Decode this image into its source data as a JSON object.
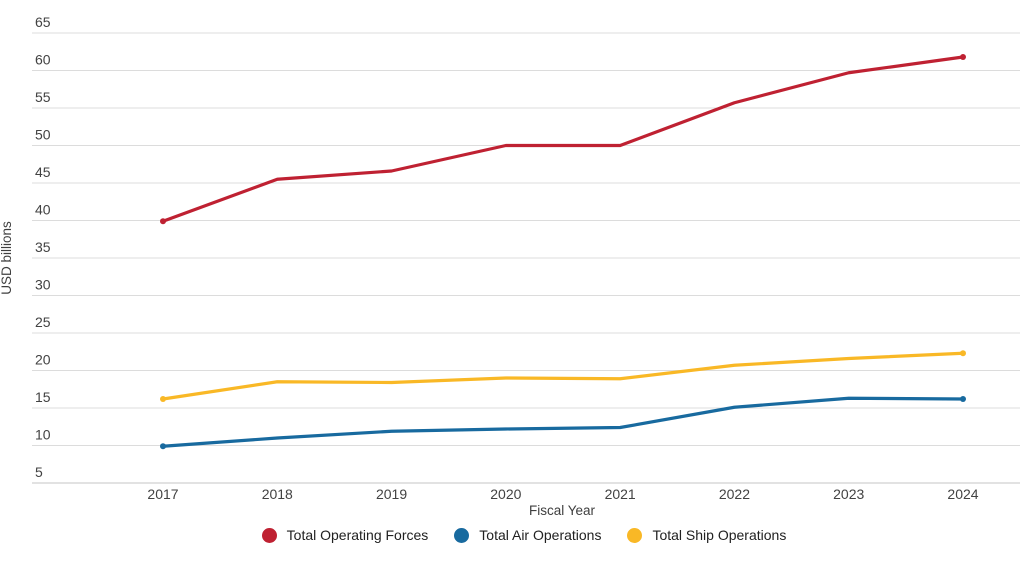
{
  "chart_data": {
    "type": "line",
    "xlabel": "Fiscal Year",
    "ylabel": "USD billions",
    "x": [
      2017,
      2018,
      2019,
      2020,
      2021,
      2022,
      2023,
      2024
    ],
    "series": [
      {
        "name": "Total Operating Forces",
        "color": "#bf2132",
        "values": [
          39.9,
          45.5,
          46.6,
          50.0,
          50.0,
          55.7,
          59.7,
          61.8
        ]
      },
      {
        "name": "Total Air Operations",
        "color": "#186a9f",
        "values": [
          9.9,
          11.0,
          11.9,
          12.2,
          12.4,
          15.1,
          16.3,
          16.2
        ]
      },
      {
        "name": "Total Ship Operations",
        "color": "#f9b826",
        "values": [
          16.2,
          18.5,
          18.4,
          19.0,
          18.9,
          20.7,
          21.6,
          22.3
        ]
      }
    ],
    "ylim": [
      5,
      65
    ],
    "ytick_step": 5,
    "grid": true,
    "legend_position": "bottom"
  },
  "styles": {
    "grid_color": "#dcdcdc",
    "axis_line_color": "#c4c4c4",
    "tick_label_color": "#424242",
    "background": "#ffffff"
  }
}
